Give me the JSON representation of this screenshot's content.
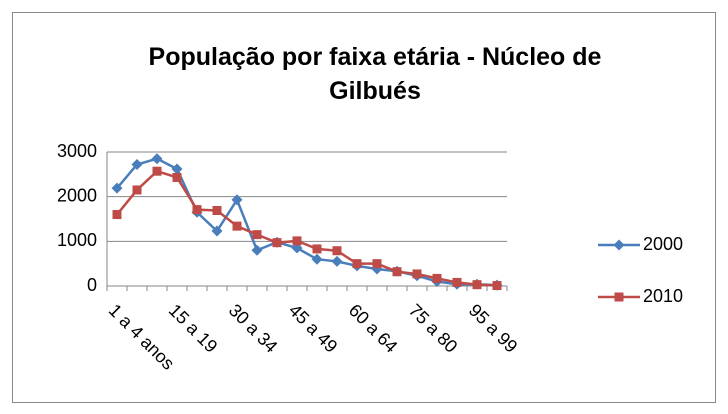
{
  "chart_data": {
    "type": "line",
    "title": "População por faixa etária - Núcleo de Gilbués",
    "categories": [
      "1 a 4 anos",
      null,
      null,
      "15 a 19",
      null,
      null,
      "30 a 34",
      null,
      null,
      "45 a 49",
      null,
      null,
      "60 a 64",
      null,
      null,
      "75 a 80",
      null,
      null,
      "95 a 99",
      null
    ],
    "series": [
      {
        "name": "2000",
        "color": "#4a7ebb",
        "marker": "diamond",
        "values": [
          2190,
          2720,
          2850,
          2620,
          1650,
          1230,
          1930,
          800,
          980,
          850,
          600,
          550,
          450,
          380,
          330,
          230,
          100,
          40,
          40,
          20
        ]
      },
      {
        "name": "2010",
        "color": "#be4b48",
        "marker": "square",
        "values": [
          1600,
          2150,
          2570,
          2430,
          1710,
          1690,
          1340,
          1150,
          970,
          1010,
          830,
          790,
          500,
          500,
          320,
          270,
          170,
          80,
          30,
          10
        ]
      }
    ],
    "ylim": [
      0,
      3000
    ],
    "yticks": [
      0,
      1000,
      2000,
      3000
    ],
    "grid": true,
    "legend": "right"
  }
}
